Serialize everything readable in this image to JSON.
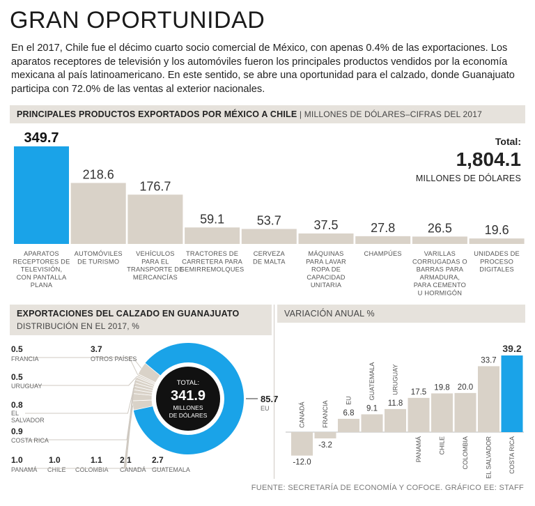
{
  "title": "GRAN OPORTUNIDAD",
  "intro": "En el 2017, Chile fue el décimo cuarto socio comercial de México, con apenas 0.4% de las exportaciones. Los aparatos receptores de televisión y los automóviles fueron los principales productos vendidos por la economía mexicana al país latinoamericano. En este sentido, se abre una oportunidad para el calzado, donde Guanajuato participa con 72.0% de las ventas al exterior nacionales.",
  "section1": {
    "title": "PRINCIPALES PRODUCTOS EXPORTADOS POR MÉXICO A CHILE",
    "subtitle": "| MILLONES DE DÓLARES–CIFRAS DEL 2017"
  },
  "total": {
    "label": "Total:",
    "value": "1,804.1",
    "unit": "MILLONES DE DÓLARES"
  },
  "section2": {
    "title": "EXPORTACIONES DEL CALZADO EN GUANAJUATO",
    "subtitle": "DISTRIBUCIÓN EN EL 2017, %"
  },
  "section3": {
    "title": "VARIACIÓN ANUAL %"
  },
  "donut_center": {
    "label": "TOTAL:",
    "value": "341.9",
    "unit_line1": "MILLONES",
    "unit_line2": "DE DÓLARES"
  },
  "footer": "FUENTE: SECRETARÍA DE ECONOMÍA Y COFOCE. GRÁFICO EE: STAFF",
  "colors": {
    "highlight": "#1aa3e8",
    "bar": "#d9d2c8",
    "header_bg": "#e6e2dc"
  },
  "chart_data": [
    {
      "type": "bar",
      "title": "PRINCIPALES PRODUCTOS EXPORTADOS POR MÉXICO A CHILE",
      "ylabel": "MILLONES DE DÓLARES–CIFRAS DEL 2017",
      "ylim": [
        0,
        349.7
      ],
      "values": [
        349.7,
        218.6,
        176.7,
        59.1,
        53.7,
        37.5,
        27.8,
        26.5,
        19.6
      ],
      "value_labels": [
        "349.7",
        "218.6",
        "176.7",
        "59.1",
        "53.7",
        "37.5",
        "27.8",
        "26.5",
        "19.6"
      ],
      "highlight_index": 0,
      "categories": [
        [
          "APARATOS",
          "RECEPTORES DE",
          "TELEVISIÓN,",
          "CON PANTALLA",
          "PLANA"
        ],
        [
          "AUTOMÓVILES",
          "DE TURISMO"
        ],
        [
          "VEHÍCULOS",
          "PARA EL",
          "TRANSPORTE DE",
          "MERCANCÍAS"
        ],
        [
          "TRACTORES DE",
          "CARRETERA PARA",
          "SEMIRREMOLQUES"
        ],
        [
          "CERVEZA",
          "DE MALTA"
        ],
        [
          "MÁQUINAS",
          "PARA LAVAR",
          "ROPA DE",
          "CAPACIDAD",
          "UNITARIA"
        ],
        [
          "CHAMPÚES"
        ],
        [
          "VARILLAS",
          "CORRUGADAS O",
          "BARRAS PARA",
          "ARMADURA,",
          "PARA CEMENTO",
          "U HORMIGÓN"
        ],
        [
          "UNIDADES DE",
          "PROCESO",
          "DIGITALES"
        ]
      ]
    },
    {
      "type": "pie",
      "title": "EXPORTACIONES DEL CALZADO EN GUANAJUATO",
      "subtitle": "DISTRIBUCIÓN EN EL 2017, %",
      "slices": [
        {
          "name": "EU",
          "value": 85.7,
          "label": "85.7"
        },
        {
          "name": "GUATEMALA",
          "value": 2.7,
          "label": "2.7"
        },
        {
          "name": "CANADÁ",
          "value": 2.1,
          "label": "2.1"
        },
        {
          "name": "COLOMBIA",
          "value": 1.1,
          "label": "1.1"
        },
        {
          "name": "CHILE",
          "value": 1.0,
          "label": "1.0"
        },
        {
          "name": "PANAMÁ",
          "value": 1.0,
          "label": "1.0"
        },
        {
          "name": "COSTA RICA",
          "value": 0.9,
          "label": "0.9"
        },
        {
          "name": "EL SALVADOR",
          "value": 0.8,
          "label": "0.8"
        },
        {
          "name": "URUGUAY",
          "value": 0.5,
          "label": "0.5"
        },
        {
          "name": "FRANCIA",
          "value": 0.5,
          "label": "0.5"
        },
        {
          "name": "OTROS PAÍSES",
          "value": 3.7,
          "label": "3.7"
        }
      ],
      "el_salvador_lines": [
        "EL",
        "SALVADOR"
      ]
    },
    {
      "type": "bar",
      "title": "VARIACIÓN ANUAL %",
      "ylim": [
        -12.0,
        39.2
      ],
      "categories": [
        "CANADÁ",
        "FRANCIA",
        "EU",
        "GUATEMALA",
        "URUGUAY",
        "PANAMÁ",
        "CHILE",
        "COLOMBIA",
        "EL SALVADOR",
        "COSTA RICA"
      ],
      "values": [
        -12.0,
        -3.2,
        6.8,
        9.1,
        11.8,
        17.5,
        19.8,
        20.0,
        33.7,
        39.2
      ],
      "value_labels": [
        "-12.0",
        "-3.2",
        "6.8",
        "9.1",
        "11.8",
        "17.5",
        "19.8",
        "20.0",
        "33.7",
        "39.2"
      ],
      "highlight_index": 9
    }
  ]
}
